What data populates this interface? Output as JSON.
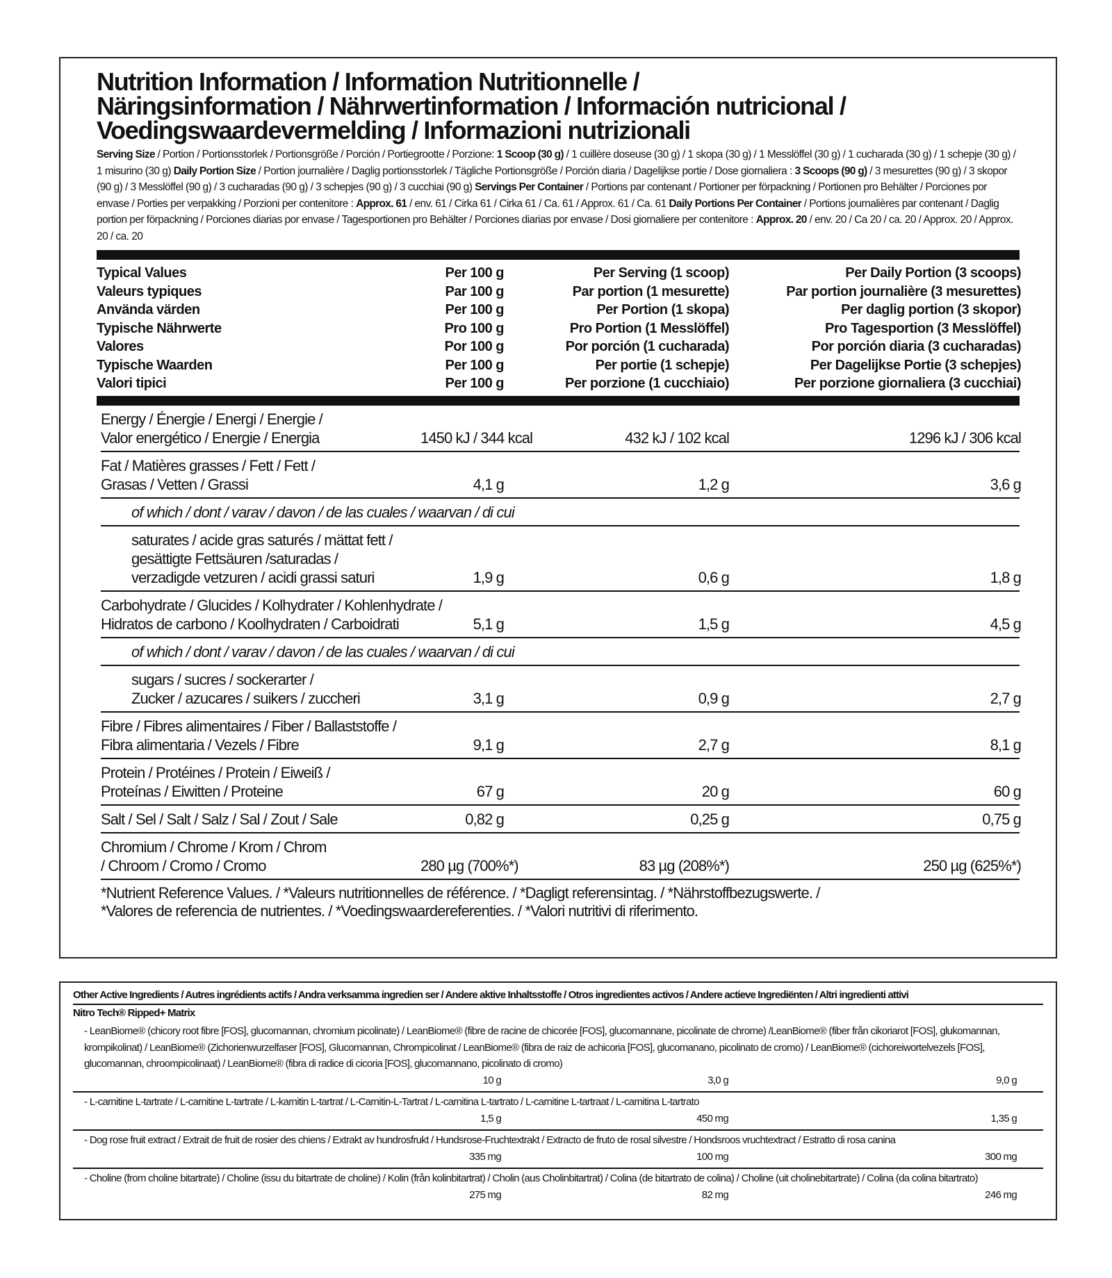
{
  "header": {
    "title": [
      "Nutrition Information / Information Nutritionnelle /",
      "Näringsinformation / Nährwertinformation / Información nutricional /",
      "Voedingswaardevermelding / Informazioni nutrizionali"
    ],
    "serving": [
      {
        "text": "Serving Size",
        "bold": true
      },
      {
        "text": " / Portion / Portionsstorlek / Portionsgröße / Porción / Portiegrootte / Porzione: "
      },
      {
        "text": "1 Scoop (30 g)",
        "bold": true
      },
      {
        "text": " / 1 cuillère doseuse (30 g) / 1 skopa (30 g) / 1 Messlöffel (30 g) / 1 cucharada (30 g) / 1 schepje (30 g) / 1 misurino (30 g) "
      },
      {
        "text": "Daily Portion Size",
        "bold": true
      },
      {
        "text": " / Portion journalière / Daglig portionsstorlek / Tägliche Portionsgröße / Porción diaria / Dagelijkse portie / Dose giornaliera : "
      },
      {
        "text": "3 Scoops (90 g)",
        "bold": true
      },
      {
        "text": " / 3 mesurettes (90 g) / 3 skopor (90 g) / 3 Messlöffel (90 g) / 3 cucharadas (90 g) / 3 schepjes (90 g) / 3 cucchiai (90 g) "
      },
      {
        "text": "Servings Per Container",
        "bold": true
      },
      {
        "text": " / Portions par contenant / Portioner per förpackning / Portionen pro Behälter / Porciones por envase / Porties per verpakking / Porzioni per contenitore : "
      },
      {
        "text": "Approx. 61",
        "bold": true
      },
      {
        "text": " / env. 61 / Cirka 61 / Cirka 61 / Ca. 61 / Approx. 61 / Ca. 61 "
      },
      {
        "text": "Daily Portions Per Container",
        "bold": true
      },
      {
        "text": " / Portions journalières par contenant / Daglig portion per förpackning / Porciones diarias por envase / Tagesportionen pro Behälter / Porciones diarias por envase / Dosi giornaliere per contenitore : "
      },
      {
        "text": "Approx. 20",
        "bold": true
      },
      {
        "text": " / env. 20 / Ca 20 / ca. 20 / Approx. 20 / Approx. 20 / ca. 20"
      }
    ]
  },
  "table": {
    "header": [
      [
        "Typical Values",
        "Per 100 g",
        "Per Serving (1 scoop)",
        "Per Daily Portion (3 scoops)"
      ],
      [
        "Valeurs typiques",
        "Par 100 g",
        "Par portion (1 mesurette)",
        "Par portion journalière (3 mesurettes)"
      ],
      [
        "Använda värden",
        "Per 100 g",
        "Per Portion (1 skopa)",
        "Per daglig portion (3 skopor)"
      ],
      [
        "Typische Nährwerte",
        "Pro 100 g",
        "Pro Portion (1 Messlöffel)",
        "Pro Tagesportion (3 Messlöffel)"
      ],
      [
        "Valores",
        "Por 100 g",
        "Por porción (1 cucharada)",
        "Por porción diaria (3 cucharadas)"
      ],
      [
        "Typische Waarden",
        "Per 100 g",
        "Per portie (1 schepje)",
        "Per Dagelijkse Portie (3 schepjes)"
      ],
      [
        "Valori tipici",
        "Per 100 g",
        "Per porzione (1 cucchiaio)",
        "Per porzione giornaliera (3 cucchiai)"
      ]
    ],
    "rows": [
      {
        "label": [
          "Energy / Énergie / Energi / Energie /",
          "Valor energético / Energie / Energia"
        ],
        "values": [
          "1450 kJ / 344 kcal",
          "432 kJ / 102 kcal",
          "1296 kJ / 306 kcal"
        ]
      },
      {
        "label": [
          "Fat / Matières grasses / Fett / Fett /",
          "Grasas / Vetten / Grassi"
        ],
        "values": [
          "4,1 g",
          "1,2 g",
          "3,6 g"
        ],
        "of_which": {
          "label": "of which / dont / varav / davon / de las cuales / waarvan / di cui",
          "items": [
            {
              "label": [
                "saturates / acide gras saturés / mättat fett /",
                "gesättigte Fettsäuren /saturadas /",
                "verzadigde vetzuren / acidi grassi saturi"
              ],
              "values": [
                "1,9 g",
                "0,6 g",
                "1,8 g"
              ]
            }
          ]
        }
      },
      {
        "label": [
          "Carbohydrate / Glucides / Kolhydrater / Kohlenhydrate /",
          "Hidratos de carbono / Koolhydraten / Carboidrati"
        ],
        "values": [
          "5,1 g",
          "1,5 g",
          "4,5 g"
        ],
        "of_which": {
          "label": "of which / dont / varav / davon / de las cuales / waarvan / di cui",
          "items": [
            {
              "label": [
                "sugars / sucres / sockerarter /",
                "Zucker / azucares / suikers / zuccheri"
              ],
              "values": [
                "3,1 g",
                "0,9 g",
                "2,7 g"
              ]
            }
          ]
        }
      },
      {
        "label": [
          "Fibre / Fibres alimentaires / Fiber / Ballaststoffe /",
          "Fibra alimentaria / Vezels / Fibre"
        ],
        "values": [
          "9,1 g",
          "2,7 g",
          "8,1 g"
        ]
      },
      {
        "label": [
          "Protein / Protéines / Protein / Eiweiß /",
          "Proteínas / Eiwitten / Proteine"
        ],
        "values": [
          "67 g",
          "20 g",
          "60 g"
        ]
      },
      {
        "label": [
          "Salt / Sel / Salt / Salz / Sal / Zout / Sale"
        ],
        "values": [
          "0,82 g",
          "0,25 g",
          "0,75 g"
        ]
      },
      {
        "label": [
          "Chromium / Chrome / Krom / Chrom",
          "/ Chroom / Cromo  / Cromo"
        ],
        "values": [
          "280 µg (700%*)",
          "83 µg (208%*)",
          "250 µg (625%*)"
        ]
      }
    ],
    "footnote": [
      "*Nutrient Reference Values. / *Valeurs nutritionnelles de référence. / *Dagligt referensintag. / *Nährstoffbezugswerte. /",
      "*Valores de referencia de nutrientes. / *Voedingswaardereferenties. / *Valori nutritivi di riferimento."
    ]
  },
  "other": {
    "title": "Other Active Ingredients / Autres ingrédients actifs / Andra verksamma ingredien ser / Andere aktive Inhaltsstoffe / Otros ingredientes activos / Andere actieve Ingrediënten / Altri ingredienti attivi",
    "subtitle": "Nitro Tech® Ripped+ Matrix",
    "items": [
      {
        "text": "- LeanBiome® (chicory root fibre [FOS], glucomannan, chromium picolinate) / LeanBiome® (fibre de racine de chicorée [FOS], glucomannane, picolinate de chrome) /LeanBiome® (fiber från cikoriarot [FOS], glukomannan, krompikolinat) / LeanBiome® (Zichorienwurzelfaser [FOS], Glucomannan, Chrompicolinat / LeanBiome® (fibra de raiz de achicoria [FOS], glucomanano, picolinato de cromo) / LeanBiome® (cichoreiwortelvezels [FOS], glucomannan, chroompicolinaat) / LeanBiome® (fibra di radice di cicoria [FOS], glucomannano, picolinato di cromo)",
        "values": [
          "10 g",
          "3,0 g",
          "9,0 g"
        ]
      },
      {
        "text": "- L-carnitine L-tartrate / L-carnitine L-tartrate / L-karnitin L-tartrat / L-Carnitin-L-Tartrat / L-carnitina L-tartrato / L-carnitine L-tartraat / L-carnitina L-tartrato",
        "values": [
          "1,5 g",
          "450 mg",
          "1,35 g"
        ]
      },
      {
        "text": "- Dog rose fruit extract / Extrait de fruit de rosier des chiens / Extrakt av hundrosfrukt / Hundsrose-Fruchtextrakt / Extracto de fruto de rosal silvestre / Hondsroos vruchtextract / Estratto di rosa canina",
        "values": [
          "335 mg",
          "100 mg",
          "300 mg"
        ]
      },
      {
        "text": "- Choline (from choline bitartrate) / Choline (issu du bitartrate de choline) / Kolin (från kolinbitartrat) / Cholin (aus Cholinbitartrat) / Colina (de bitartrato de colina) / Choline (uit cholinebitartrate) / Colina (da colina bitartrato)",
        "values": [
          "275 mg",
          "82 mg",
          "246 mg"
        ]
      }
    ]
  }
}
